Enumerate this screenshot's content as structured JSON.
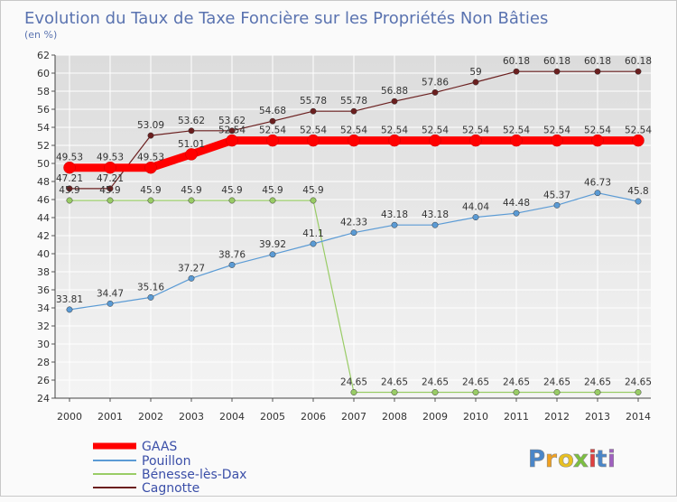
{
  "chart_data": {
    "type": "line",
    "title": "Evolution du Taux de Taxe Foncière sur les Propriétés Non Bâties",
    "unit_label": "(en %)",
    "categories": [
      "2000",
      "2001",
      "2002",
      "2003",
      "2004",
      "2005",
      "2006",
      "2007",
      "2008",
      "2009",
      "2010",
      "2011",
      "2012",
      "2013",
      "2014"
    ],
    "ylim": [
      24,
      62
    ],
    "y_ticks": [
      24,
      26,
      28,
      30,
      32,
      34,
      36,
      38,
      40,
      42,
      44,
      46,
      48,
      50,
      52,
      54,
      56,
      58,
      60,
      62
    ],
    "grid": true,
    "series": [
      {
        "name": "Cagnotte",
        "key": "cagnotte",
        "color": "#6b1f1f",
        "values": [
          47.21,
          47.21,
          53.09,
          53.62,
          53.62,
          54.68,
          55.78,
          55.78,
          56.88,
          57.86,
          59,
          60.18,
          60.18,
          60.18,
          60.18
        ],
        "labels": [
          "47.21",
          "47.21",
          "53.09",
          "53.62",
          "53.62",
          "54.68",
          "55.78",
          "55.78",
          "56.88",
          "57.86",
          "59",
          "60.18",
          "60.18",
          "60.18",
          "60.18"
        ]
      },
      {
        "name": "Bénesse-lès-Dax",
        "key": "benesse",
        "color": "#99cc66",
        "values": [
          45.9,
          45.9,
          45.9,
          45.9,
          45.9,
          45.9,
          45.9,
          24.65,
          24.65,
          24.65,
          24.65,
          24.65,
          24.65,
          24.65,
          24.65
        ],
        "labels": [
          "45.9",
          "45.9",
          "45.9",
          "45.9",
          "45.9",
          "45.9",
          "45.9",
          "24.65",
          "24.65",
          "24.65",
          "24.65",
          "24.65",
          "24.65",
          "24.65",
          "24.65"
        ]
      },
      {
        "name": "Pouillon",
        "key": "pouillon",
        "color": "#5b9bd5",
        "values": [
          33.81,
          34.47,
          35.16,
          37.27,
          38.76,
          39.92,
          41.1,
          42.33,
          43.18,
          43.18,
          44.04,
          44.48,
          45.37,
          46.73,
          45.8
        ],
        "labels": [
          "33.81",
          "34.47",
          "35.16",
          "37.27",
          "38.76",
          "39.92",
          "41.1",
          "42.33",
          "43.18",
          "43.18",
          "44.04",
          "44.48",
          "45.37",
          "46.73",
          "45.8"
        ]
      },
      {
        "name": "GAAS",
        "key": "gaas",
        "color": "#ff0000",
        "values": [
          49.53,
          49.53,
          49.53,
          51.01,
          52.54,
          52.54,
          52.54,
          52.54,
          52.54,
          52.54,
          52.54,
          52.54,
          52.54,
          52.54,
          52.54
        ],
        "labels": [
          "49.53",
          "49.53",
          "49.53",
          "51.01",
          "52.54",
          "52.54",
          "52.54",
          "52.54",
          "52.54",
          "52.54",
          "52.54",
          "52.54",
          "52.54",
          "52.54",
          "52.54"
        ]
      }
    ],
    "legend": [
      "GAAS",
      "Pouillon",
      "Bénesse-lès-Dax",
      "Cagnotte"
    ],
    "legend_position": "bottom-left"
  },
  "brand": {
    "text": "Proxiti",
    "letters": [
      "P",
      "r",
      "o",
      "x",
      "i",
      "t",
      "i"
    ]
  }
}
